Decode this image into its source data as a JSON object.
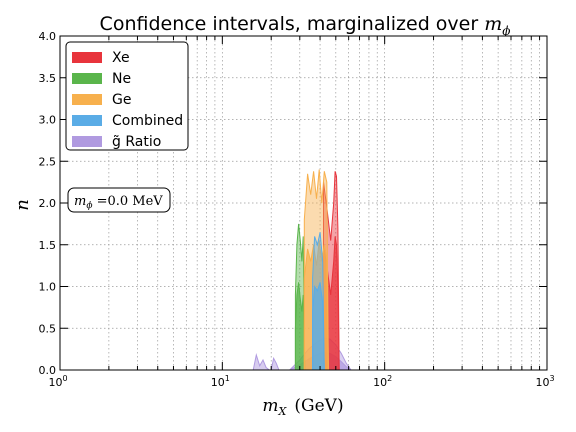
{
  "chart_data": {
    "type": "area",
    "title": {
      "text": "Confidence intervals, marginalized over ",
      "math": "m",
      "math_sub": "ϕ"
    },
    "xlabel": {
      "math": "m",
      "math_sub": "X",
      "text": "(GeV)"
    },
    "ylabel": "n",
    "x_scale": "log",
    "xlim": [
      1,
      1000
    ],
    "ylim": [
      0.0,
      4.0
    ],
    "grid": true,
    "x_ticks": [
      {
        "value": 1,
        "base": "10",
        "exp": "0"
      },
      {
        "value": 10,
        "base": "10",
        "exp": "1"
      },
      {
        "value": 100,
        "base": "10",
        "exp": "2"
      },
      {
        "value": 1000,
        "base": "10",
        "exp": "3"
      }
    ],
    "y_ticks": [
      {
        "value": 0.0,
        "label": "0.0"
      },
      {
        "value": 0.5,
        "label": "0.5"
      },
      {
        "value": 1.0,
        "label": "1.0"
      },
      {
        "value": 1.5,
        "label": "1.5"
      },
      {
        "value": 2.0,
        "label": "2.0"
      },
      {
        "value": 2.5,
        "label": "2.5"
      },
      {
        "value": 3.0,
        "label": "3.0"
      },
      {
        "value": 3.5,
        "label": "3.5"
      },
      {
        "value": 4.0,
        "label": "4.0"
      }
    ],
    "legend_position": "top-left",
    "annotation": {
      "math": "m",
      "math_sub": "ϕ",
      "text": " =0.0 MeV"
    },
    "series": [
      {
        "name": "Xe",
        "color": "#e8343c",
        "x": [
          42.0,
          44.0,
          46.5,
          48.5,
          49.5,
          50.5,
          51.5,
          52.5
        ],
        "outer": [
          2.25,
          1.95,
          1.55,
          2.0,
          2.38,
          2.32,
          1.7,
          0.0
        ],
        "inner": [
          1.5,
          1.25,
          0.9,
          1.3,
          1.6,
          1.5,
          1.0,
          0.0
        ]
      },
      {
        "name": "Ne",
        "color": "#5ab54b",
        "x": [
          28.2,
          28.8,
          29.5,
          30.2,
          30.9,
          31.5,
          32.2
        ],
        "outer": [
          0.9,
          1.5,
          1.75,
          1.55,
          1.3,
          1.6,
          0.0
        ],
        "inner": [
          0.5,
          0.9,
          1.05,
          0.85,
          0.7,
          0.9,
          0.0
        ]
      },
      {
        "name": "Ge",
        "color": "#f7b04d",
        "x": [
          32.0,
          33.5,
          35.0,
          36.5,
          38.0,
          39.5,
          41.0,
          42.5,
          44.0,
          45.0
        ],
        "outer": [
          1.8,
          2.35,
          2.1,
          2.38,
          2.05,
          2.4,
          2.0,
          2.38,
          2.25,
          0.0
        ],
        "inner": [
          1.1,
          1.45,
          1.3,
          1.5,
          1.25,
          1.55,
          1.3,
          1.5,
          1.35,
          0.0
        ]
      },
      {
        "name": "Combined",
        "color": "#5aace6",
        "x": [
          36.0,
          37.0,
          38.5,
          40.0,
          41.5,
          42.5
        ],
        "outer": [
          1.1,
          1.6,
          1.5,
          1.65,
          1.3,
          0.0
        ],
        "inner": [
          0.7,
          1.0,
          0.95,
          1.05,
          0.8,
          0.0
        ]
      },
      {
        "name": "g̃ Ratio",
        "color": "#b09ae0",
        "x": [
          26.0,
          30.0,
          34.0,
          38.0,
          42.0,
          46.0,
          50.0,
          54.0,
          58.0,
          62.0
        ],
        "outer": [
          0.0,
          0.12,
          0.25,
          0.33,
          0.38,
          0.37,
          0.3,
          0.2,
          0.08,
          0.0
        ],
        "inner": [
          0.0,
          0.06,
          0.13,
          0.18,
          0.21,
          0.2,
          0.16,
          0.1,
          0.04,
          0.0
        ]
      }
    ],
    "extra_regions": [
      {
        "series": "g̃ Ratio",
        "x": [
          15.5,
          16.2,
          17.0,
          17.8,
          18.6,
          19.5
        ],
        "outer": [
          0.0,
          0.18,
          0.05,
          0.12,
          0.03,
          0.0
        ]
      },
      {
        "series": "g̃ Ratio",
        "x": [
          20.0,
          20.7,
          21.5,
          22.3
        ],
        "outer": [
          0.0,
          0.14,
          0.08,
          0.0
        ]
      }
    ]
  }
}
